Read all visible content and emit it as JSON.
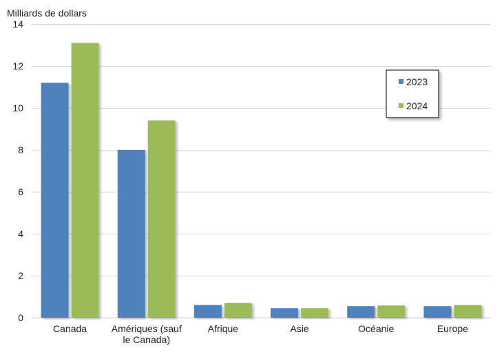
{
  "chart_data": {
    "type": "bar",
    "ylabel": "Milliards de dollars",
    "categories": [
      [
        "Canada"
      ],
      [
        "Amériques (sauf",
        "le Canada)"
      ],
      [
        "Afrique"
      ],
      [
        "Asie"
      ],
      [
        "Océanie"
      ],
      [
        "Europe"
      ]
    ],
    "series": [
      {
        "name": "2023",
        "color": "#4f81bd",
        "values": [
          11.2,
          8.0,
          0.6,
          0.45,
          0.55,
          0.55
        ]
      },
      {
        "name": "2024",
        "color": "#9bbb59",
        "values": [
          13.1,
          9.4,
          0.7,
          0.45,
          0.58,
          0.6
        ]
      }
    ],
    "ylim": [
      0,
      14
    ],
    "yticks": [
      0,
      2,
      4,
      6,
      8,
      10,
      12,
      14
    ],
    "grid": true,
    "legend_position": "top-right"
  }
}
